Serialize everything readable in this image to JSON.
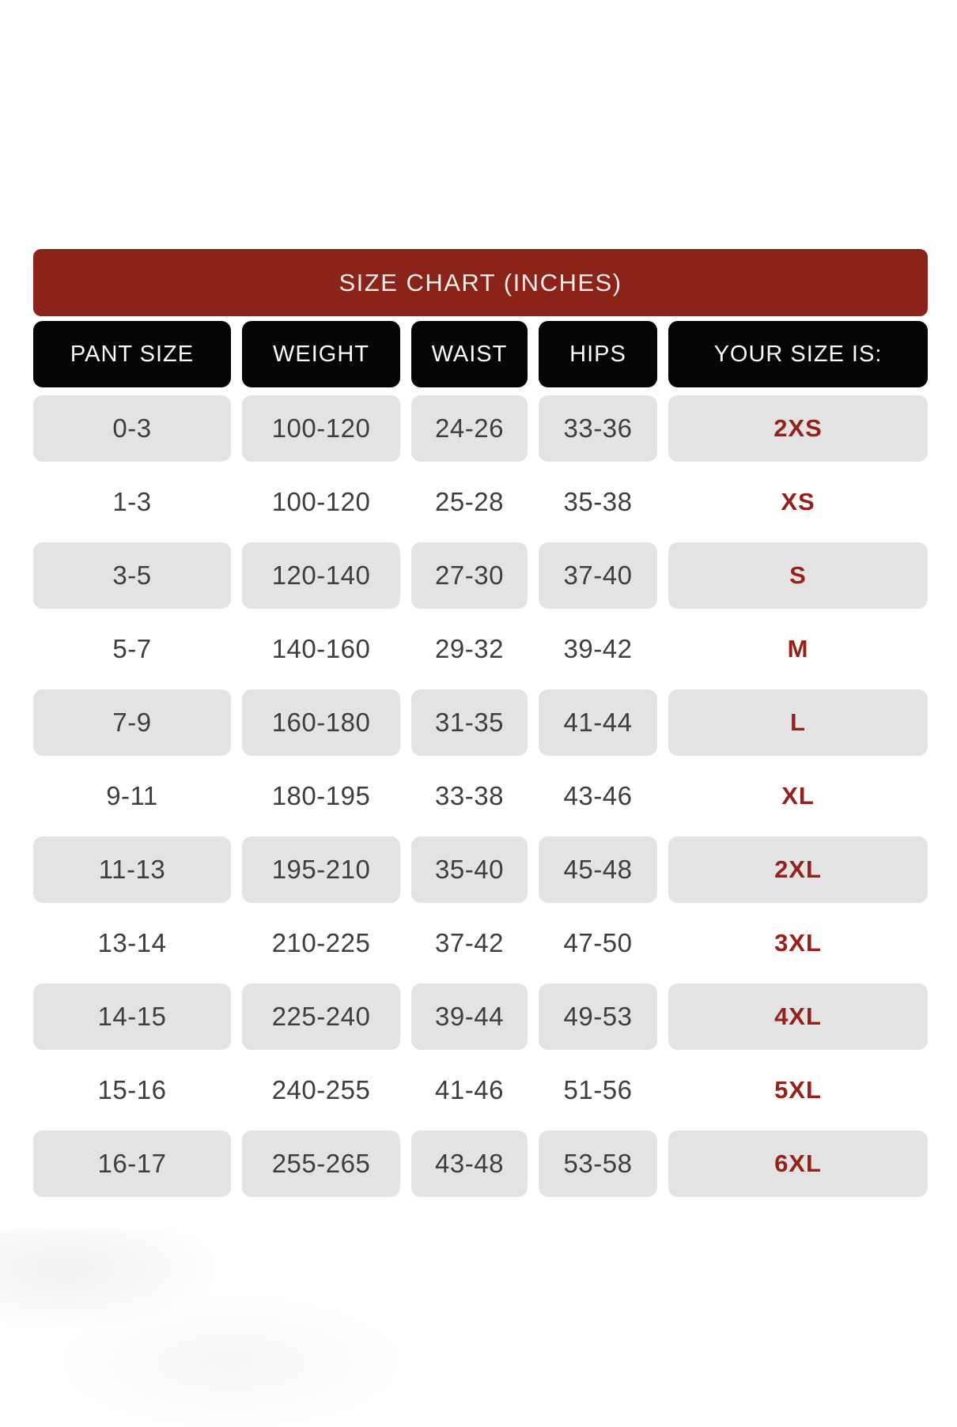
{
  "title": "SIZE CHART (INCHES)",
  "columns": [
    "PANT SIZE",
    "WEIGHT",
    "WAIST",
    "HIPS",
    "YOUR SIZE IS:"
  ],
  "rows": [
    {
      "pant_size": "0-3",
      "weight": "100-120",
      "waist": "24-26",
      "hips": "33-36",
      "size": "2XS"
    },
    {
      "pant_size": "1-3",
      "weight": "100-120",
      "waist": "25-28",
      "hips": "35-38",
      "size": "XS"
    },
    {
      "pant_size": "3-5",
      "weight": "120-140",
      "waist": "27-30",
      "hips": "37-40",
      "size": "S"
    },
    {
      "pant_size": "5-7",
      "weight": "140-160",
      "waist": "29-32",
      "hips": "39-42",
      "size": "M"
    },
    {
      "pant_size": "7-9",
      "weight": "160-180",
      "waist": "31-35",
      "hips": "41-44",
      "size": "L"
    },
    {
      "pant_size": "9-11",
      "weight": "180-195",
      "waist": "33-38",
      "hips": "43-46",
      "size": "XL"
    },
    {
      "pant_size": "11-13",
      "weight": "195-210",
      "waist": "35-40",
      "hips": "45-48",
      "size": "2XL"
    },
    {
      "pant_size": "13-14",
      "weight": "210-225",
      "waist": "37-42",
      "hips": "47-50",
      "size": "3XL"
    },
    {
      "pant_size": "14-15",
      "weight": "225-240",
      "waist": "39-44",
      "hips": "49-53",
      "size": "4XL"
    },
    {
      "pant_size": "15-16",
      "weight": "240-255",
      "waist": "41-46",
      "hips": "51-56",
      "size": "5XL"
    },
    {
      "pant_size": "16-17",
      "weight": "255-265",
      "waist": "43-48",
      "hips": "53-58",
      "size": "6XL"
    }
  ],
  "chart_data": {
    "type": "table",
    "title": "SIZE CHART (INCHES)",
    "columns": [
      "PANT SIZE",
      "WEIGHT",
      "WAIST",
      "HIPS",
      "YOUR SIZE IS:"
    ],
    "rows": [
      [
        "0-3",
        "100-120",
        "24-26",
        "33-36",
        "2XS"
      ],
      [
        "1-3",
        "100-120",
        "25-28",
        "35-38",
        "XS"
      ],
      [
        "3-5",
        "120-140",
        "27-30",
        "37-40",
        "S"
      ],
      [
        "5-7",
        "140-160",
        "29-32",
        "39-42",
        "M"
      ],
      [
        "7-9",
        "160-180",
        "31-35",
        "41-44",
        "L"
      ],
      [
        "9-11",
        "180-195",
        "33-38",
        "43-46",
        "XL"
      ],
      [
        "11-13",
        "195-210",
        "35-40",
        "45-48",
        "2XL"
      ],
      [
        "13-14",
        "210-225",
        "37-42",
        "47-50",
        "3XL"
      ],
      [
        "14-15",
        "225-240",
        "39-44",
        "49-53",
        "4XL"
      ],
      [
        "15-16",
        "240-255",
        "41-46",
        "51-56",
        "5XL"
      ],
      [
        "16-17",
        "255-265",
        "43-48",
        "53-58",
        "6XL"
      ]
    ]
  },
  "colors": {
    "banner_red": "#8B2318",
    "header_black": "#050505",
    "row_alt_gray": "#E3E3E3",
    "size_text_red": "#97211A",
    "cell_text": "#3E3E3E",
    "header_text": "#FBFBFB"
  }
}
